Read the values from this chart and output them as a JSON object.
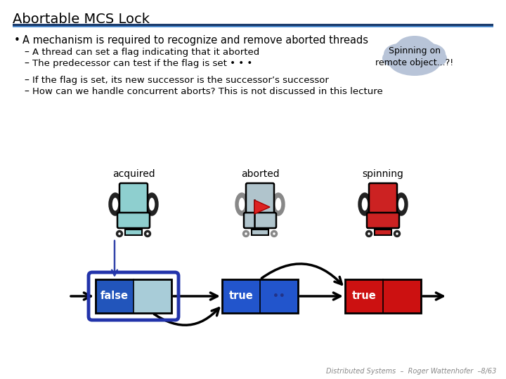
{
  "title": "Abortable MCS Lock",
  "bullet": "A mechanism is required to recognize and remove aborted threads",
  "sub_bullets": [
    "A thread can set a flag indicating that it aborted",
    "The predecessor can test if the flag is set • • •",
    "If the flag is set, its new successor is the successor’s successor",
    "How can we handle concurrent aborts? This is not discussed in this lecture"
  ],
  "cloud_text": "Spinning on\nremote object...?!",
  "footer": "Distributed Systems  –  Roger Wattenhofer  –8/63",
  "title_color": "#000000",
  "background_color": "#ffffff"
}
